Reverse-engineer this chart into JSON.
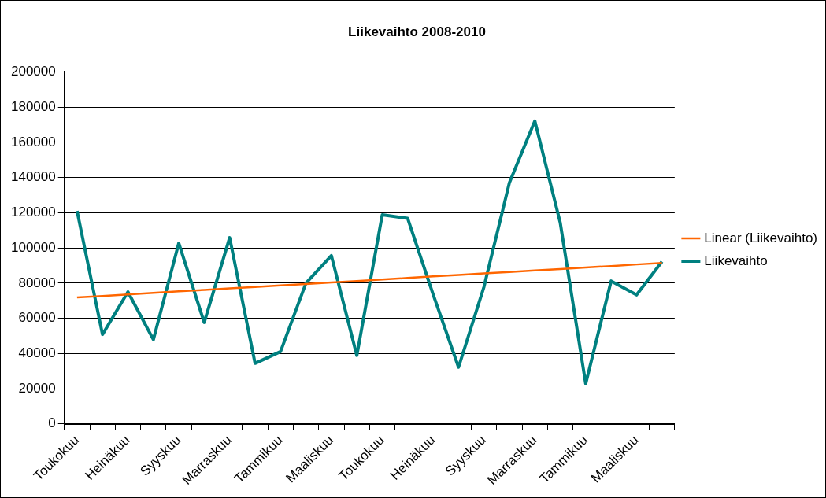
{
  "chart_data": {
    "type": "line",
    "title": "Liikevaihto 2008-2010",
    "categories": [
      "Toukokuu",
      null,
      "Heinäkuu",
      null,
      "Syyskuu",
      null,
      "Marraskuu",
      null,
      "Tammikuu",
      null,
      "Maaliskuu",
      null,
      "Toukokuu",
      null,
      "Heinäkuu",
      null,
      "Syyskuu",
      null,
      "Marraskuu",
      null,
      "Tammikuu",
      null,
      "Maaliskuu",
      null
    ],
    "series": [
      {
        "name": "Liikevaihto",
        "color": "#008080",
        "values": [
          121000,
          50800,
          75000,
          47900,
          102700,
          57600,
          105800,
          34400,
          41100,
          80000,
          95600,
          38900,
          118800,
          116800,
          73600,
          32200,
          77900,
          137000,
          172100,
          114200,
          22800,
          81200,
          73300,
          92200
        ]
      },
      {
        "name": "Linear (Liikevaihto)",
        "color": "#ff6600",
        "values": [
          71900,
          72700,
          73600,
          74400,
          75300,
          76100,
          77000,
          77800,
          78700,
          79500,
          80400,
          81200,
          82100,
          82900,
          83800,
          84600,
          85500,
          86300,
          87200,
          88000,
          88900,
          89700,
          90600,
          91400
        ]
      }
    ],
    "ylim": [
      0,
      200000
    ],
    "yticks": [
      0,
      20000,
      40000,
      60000,
      80000,
      100000,
      120000,
      140000,
      160000,
      180000,
      200000
    ],
    "grid": "y",
    "legend": "right",
    "marker": "none",
    "line_style": "solid"
  }
}
